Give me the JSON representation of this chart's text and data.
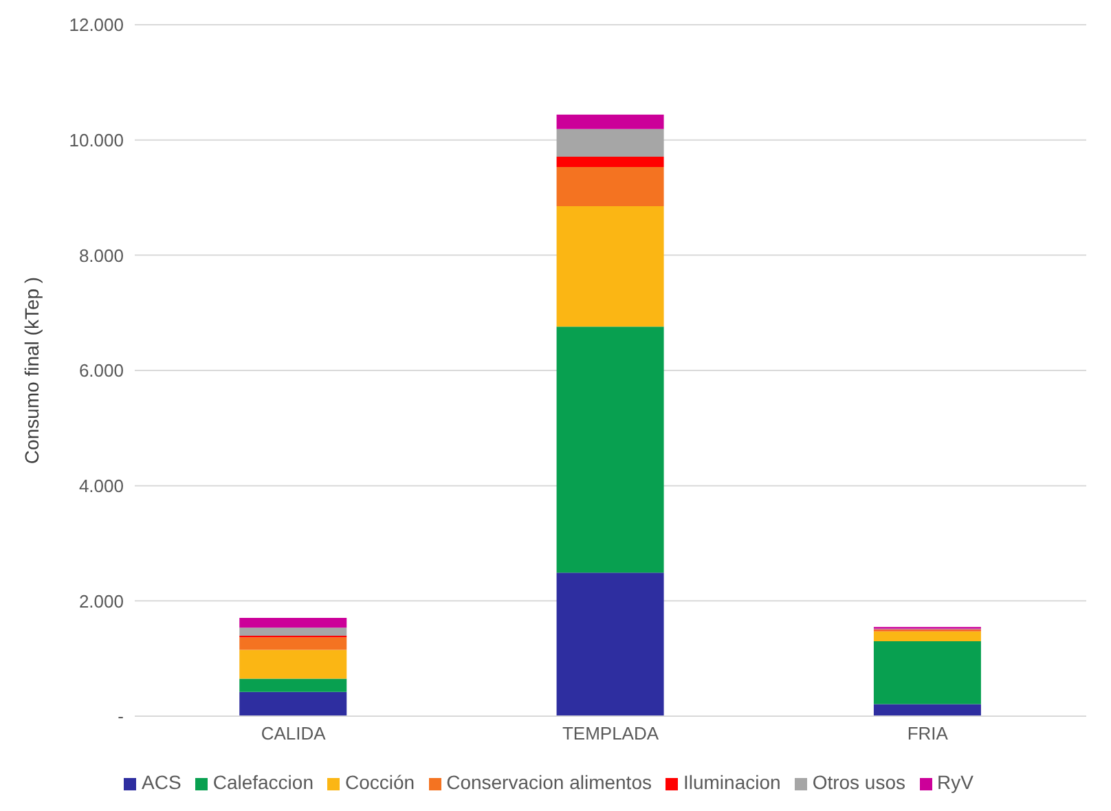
{
  "chart_data": {
    "type": "bar",
    "stacked": true,
    "ylabel": "Consumo final (kTep )",
    "categories": [
      "CALIDA",
      "TEMPLADA",
      "FRIA"
    ],
    "series": [
      {
        "name": "ACS",
        "color": "#2e2ea0",
        "values": [
          420,
          2490,
          210
        ]
      },
      {
        "name": "Calefaccion",
        "color": "#08a050",
        "values": [
          230,
          4270,
          1090
        ]
      },
      {
        "name": "Cocción",
        "color": "#fbb614",
        "values": [
          500,
          2090,
          170
        ]
      },
      {
        "name": "Conservacion alimentos",
        "color": "#f47321",
        "values": [
          220,
          680,
          25
        ]
      },
      {
        "name": "Iluminacion",
        "color": "#ff0000",
        "values": [
          25,
          180,
          12
        ]
      },
      {
        "name": "Otros usos",
        "color": "#a6a6a6",
        "values": [
          140,
          480,
          10
        ]
      },
      {
        "name": "RyV",
        "color": "#cc0099",
        "values": [
          170,
          250,
          30
        ]
      }
    ],
    "ylim": [
      0,
      12000
    ],
    "yticks": [
      {
        "value": 0,
        "label": "-"
      },
      {
        "value": 2000,
        "label": "2.000"
      },
      {
        "value": 4000,
        "label": "4.000"
      },
      {
        "value": 6000,
        "label": "6.000"
      },
      {
        "value": 8000,
        "label": "8.000"
      },
      {
        "value": 10000,
        "label": "10.000"
      },
      {
        "value": 12000,
        "label": "12.000"
      }
    ],
    "grid": "y",
    "legend": "bottom"
  }
}
